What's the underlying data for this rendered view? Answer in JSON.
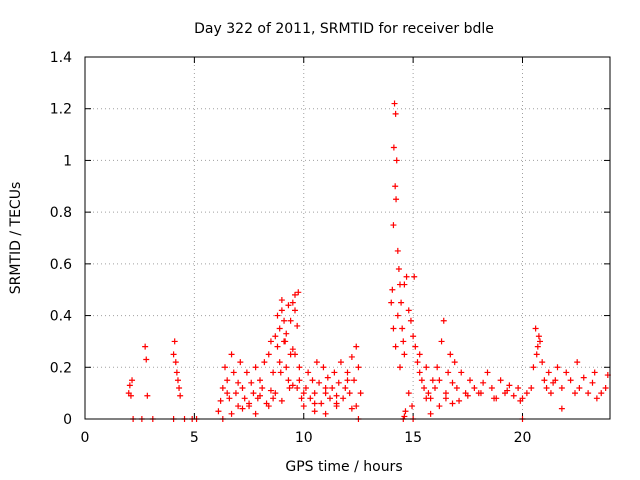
{
  "chart_data": {
    "type": "scatter",
    "title": "Day 322 of 2011, SRMTID for receiver bdle",
    "xlabel": "GPS time / hours",
    "ylabel": "SRMTID / TECUs",
    "xlim": [
      0,
      24
    ],
    "ylim": [
      0,
      1.4
    ],
    "xticks": [
      0,
      5,
      10,
      15,
      20
    ],
    "xtick_labels": [
      "0",
      "5",
      "10",
      "15",
      "20"
    ],
    "yticks": [
      0,
      0.2,
      0.4,
      0.6,
      0.8,
      1.0,
      1.2,
      1.4
    ],
    "ytick_labels": [
      "0",
      "0.2",
      "0.4",
      "0.6",
      "0.8",
      "1",
      "1.2",
      "1.4"
    ],
    "grid": true,
    "marker": "+",
    "color": "#ff0000",
    "series": [
      {
        "name": "bdle",
        "x": [
          2.0,
          2.05,
          2.1,
          2.15,
          2.2,
          2.6,
          2.75,
          2.8,
          2.85,
          3.1,
          4.05,
          4.1,
          4.15,
          4.2,
          4.25,
          4.3,
          4.35,
          4.05,
          4.55,
          4.9,
          5.1,
          6.1,
          6.2,
          6.3,
          6.4,
          6.5,
          6.6,
          6.7,
          6.8,
          6.9,
          7.0,
          7.1,
          7.2,
          7.3,
          7.4,
          7.5,
          7.6,
          7.7,
          7.8,
          7.9,
          8.0,
          8.1,
          8.2,
          8.3,
          8.4,
          8.5,
          8.6,
          8.7,
          8.8,
          8.9,
          9.0,
          9.1,
          9.2,
          9.3,
          9.4,
          9.5,
          9.6,
          9.7,
          9.8,
          9.9,
          10.0,
          10.1,
          10.2,
          10.3,
          10.4,
          10.5,
          10.6,
          10.7,
          10.8,
          10.9,
          11.0,
          11.1,
          11.2,
          11.3,
          11.4,
          11.5,
          11.6,
          11.7,
          11.8,
          11.9,
          12.0,
          12.1,
          12.2,
          12.3,
          12.4,
          12.5,
          12.6,
          6.3,
          6.7,
          7.2,
          7.8,
          8.4,
          8.6,
          8.8,
          9.0,
          9.2,
          9.4,
          9.6,
          9.8,
          10.5,
          11.0,
          11.5,
          12.2,
          12.5,
          6.5,
          7.0,
          7.5,
          8.0,
          8.5,
          9.0,
          9.5,
          10.0,
          10.5,
          11.0,
          11.5,
          12.0,
          12.4,
          8.7,
          8.9,
          9.1,
          9.3,
          9.5,
          9.6,
          9.7,
          9.75,
          8.95,
          9.15,
          9.35,
          14.0,
          14.05,
          14.1,
          14.12,
          14.15,
          14.18,
          14.2,
          14.22,
          14.25,
          14.3,
          14.35,
          14.4,
          14.45,
          14.5,
          14.55,
          14.6,
          14.7,
          14.8,
          14.9,
          15.0,
          15.1,
          15.2,
          15.3,
          15.4,
          15.5,
          15.6,
          15.7,
          15.8,
          15.9,
          14.1,
          14.2,
          14.3,
          14.4,
          14.6,
          14.8,
          14.95,
          15.05,
          15.3,
          15.6,
          16.0,
          16.1,
          16.2,
          16.3,
          16.4,
          16.5,
          16.6,
          16.7,
          16.8,
          16.9,
          17.0,
          17.2,
          17.4,
          17.6,
          17.8,
          18.0,
          18.2,
          18.4,
          18.6,
          18.8,
          19.0,
          19.2,
          19.4,
          19.6,
          19.8,
          20.0,
          20.2,
          20.4,
          16.2,
          16.5,
          16.8,
          17.1,
          17.5,
          18.1,
          18.7,
          19.3,
          19.9,
          20.5,
          20.6,
          20.7,
          20.8,
          20.9,
          21.0,
          21.1,
          21.2,
          21.3,
          21.4,
          21.6,
          21.8,
          22.0,
          22.2,
          22.4,
          22.6,
          22.8,
          23.0,
          23.2,
          23.4,
          23.6,
          23.8,
          20.65,
          20.75,
          21.5,
          22.5,
          23.3,
          14.55,
          14.6,
          14.65,
          15.0,
          15.8,
          20.0,
          21.8,
          23.9
        ],
        "y": [
          0.1,
          0.13,
          0.09,
          0.15,
          0.0,
          0.0,
          0.28,
          0.23,
          0.09,
          0.0,
          0.25,
          0.3,
          0.22,
          0.18,
          0.15,
          0.12,
          0.09,
          0.0,
          0.0,
          0.0,
          0.0,
          0.03,
          0.07,
          0.12,
          0.2,
          0.15,
          0.08,
          0.25,
          0.18,
          0.1,
          0.05,
          0.22,
          0.12,
          0.08,
          0.18,
          0.06,
          0.14,
          0.1,
          0.2,
          0.08,
          0.15,
          0.12,
          0.22,
          0.06,
          0.25,
          0.3,
          0.18,
          0.1,
          0.28,
          0.35,
          0.42,
          0.3,
          0.2,
          0.15,
          0.38,
          0.45,
          0.25,
          0.12,
          0.2,
          0.08,
          0.05,
          0.12,
          0.18,
          0.08,
          0.15,
          0.1,
          0.22,
          0.14,
          0.06,
          0.2,
          0.1,
          0.16,
          0.08,
          0.12,
          0.18,
          0.05,
          0.14,
          0.22,
          0.08,
          0.12,
          0.18,
          0.1,
          0.24,
          0.15,
          0.28,
          0.2,
          0.1,
          0.0,
          0.02,
          0.04,
          0.02,
          0.05,
          0.08,
          0.4,
          0.46,
          0.33,
          0.25,
          0.48,
          0.15,
          0.03,
          0.02,
          0.06,
          0.04,
          0.0,
          0.1,
          0.14,
          0.05,
          0.09,
          0.11,
          0.07,
          0.13,
          0.1,
          0.06,
          0.12,
          0.09,
          0.15,
          0.05,
          0.32,
          0.22,
          0.38,
          0.44,
          0.27,
          0.42,
          0.36,
          0.49,
          0.18,
          0.3,
          0.12,
          0.45,
          0.5,
          0.75,
          1.05,
          1.22,
          0.9,
          1.18,
          0.85,
          1.0,
          0.65,
          0.58,
          0.52,
          0.45,
          0.35,
          0.3,
          0.25,
          0.55,
          0.42,
          0.38,
          0.32,
          0.28,
          0.22,
          0.18,
          0.15,
          0.12,
          0.2,
          0.1,
          0.08,
          0.15,
          0.35,
          0.28,
          0.4,
          0.2,
          0.52,
          0.1,
          0.05,
          0.55,
          0.25,
          0.08,
          0.12,
          0.2,
          0.15,
          0.3,
          0.38,
          0.1,
          0.18,
          0.25,
          0.14,
          0.22,
          0.12,
          0.18,
          0.1,
          0.15,
          0.12,
          0.1,
          0.14,
          0.18,
          0.12,
          0.08,
          0.15,
          0.1,
          0.13,
          0.09,
          0.12,
          0.08,
          0.1,
          0.12,
          0.05,
          0.08,
          0.06,
          0.07,
          0.09,
          0.1,
          0.08,
          0.11,
          0.07,
          0.2,
          0.35,
          0.28,
          0.3,
          0.22,
          0.15,
          0.12,
          0.18,
          0.1,
          0.14,
          0.2,
          0.12,
          0.18,
          0.15,
          0.1,
          0.12,
          0.16,
          0.1,
          0.14,
          0.08,
          0.1,
          0.12,
          0.25,
          0.32,
          0.15,
          0.22,
          0.18,
          0.0,
          0.01,
          0.03,
          0.0,
          0.02,
          0.0,
          0.04,
          0.17
        ]
      }
    ]
  }
}
